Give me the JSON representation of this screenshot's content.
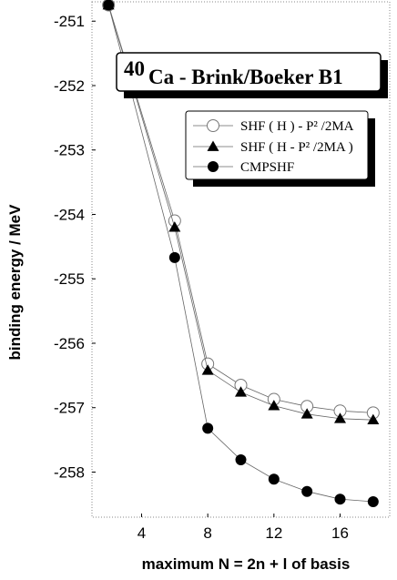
{
  "chart_data": {
    "type": "line",
    "title_main": "Ca - Brink/Boeker B1",
    "title_superscript": "40",
    "xlabel": "maximum  N = 2n + l  of basis",
    "ylabel": "binding energy / MeV",
    "xlim": [
      1,
      19
    ],
    "ylim": [
      -258.7,
      -250.7
    ],
    "xticks": [
      4,
      8,
      12,
      16
    ],
    "xtick_labels": [
      "4",
      "8",
      "12",
      "16"
    ],
    "yticks": [
      -251,
      -252,
      -253,
      -254,
      -255,
      -256,
      -257,
      -258
    ],
    "ytick_labels": [
      "-251",
      "-252",
      "-253",
      "-254",
      "-255",
      "-256",
      "-257",
      "-258"
    ],
    "legend_position": "top-right",
    "series": [
      {
        "name": "SHF ( H ) - P² /2MA",
        "marker": "open-circle",
        "x": [
          2,
          6,
          8,
          10,
          12,
          14,
          16,
          18
        ],
        "y": [
          -250.75,
          -254.1,
          -256.32,
          -256.65,
          -256.87,
          -256.98,
          -257.05,
          -257.08
        ]
      },
      {
        "name": "SHF ( H - P² /2MA )",
        "marker": "filled-triangle",
        "x": [
          2,
          6,
          8,
          10,
          12,
          14,
          16,
          18
        ],
        "y": [
          -250.75,
          -254.2,
          -256.42,
          -256.76,
          -256.97,
          -257.1,
          -257.17,
          -257.19
        ]
      },
      {
        "name": "CMPSHF",
        "marker": "filled-circle",
        "x": [
          2,
          6,
          8,
          10,
          12,
          14,
          16,
          18
        ],
        "y": [
          -250.75,
          -254.67,
          -257.32,
          -257.81,
          -258.11,
          -258.3,
          -258.42,
          -258.46
        ]
      }
    ]
  }
}
